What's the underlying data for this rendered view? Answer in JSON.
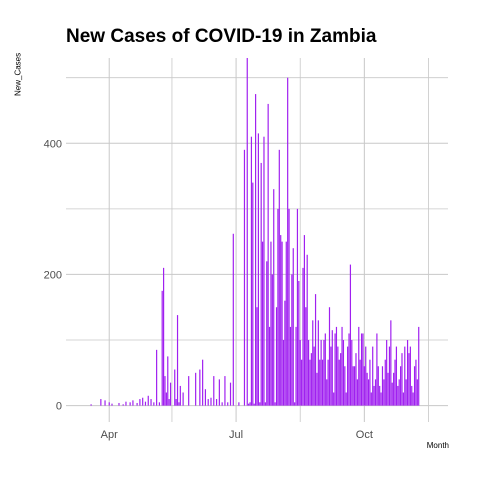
{
  "chart_data": {
    "type": "bar",
    "title": "New Cases of COVID-19 in Zambia",
    "xlabel": "Month",
    "ylabel": "New_Cases",
    "bar_color": "#a020f0",
    "grid": true,
    "grid_color": "#c8c8c8",
    "x_tick_labels": [
      "Apr",
      "Jul",
      "Oct"
    ],
    "y_ticks": [
      0,
      200,
      400
    ],
    "ylim": [
      -25,
      530
    ],
    "xlim": [
      "2020-03-01",
      "2020-11-30"
    ],
    "x": [
      "2020-03-19",
      "2020-03-26",
      "2020-03-29",
      "2020-04-01",
      "2020-04-03",
      "2020-04-08",
      "2020-04-11",
      "2020-04-13",
      "2020-04-16",
      "2020-04-18",
      "2020-04-21",
      "2020-04-23",
      "2020-04-25",
      "2020-04-27",
      "2020-04-29",
      "2020-05-01",
      "2020-05-03",
      "2020-05-05",
      "2020-05-07",
      "2020-05-09",
      "2020-05-10",
      "2020-05-11",
      "2020-05-12",
      "2020-05-13",
      "2020-05-14",
      "2020-05-15",
      "2020-05-18",
      "2020-05-19",
      "2020-05-20",
      "2020-05-21",
      "2020-05-22",
      "2020-05-24",
      "2020-05-28",
      "2020-06-02",
      "2020-06-05",
      "2020-06-07",
      "2020-06-09",
      "2020-06-11",
      "2020-06-13",
      "2020-06-15",
      "2020-06-17",
      "2020-06-19",
      "2020-06-21",
      "2020-06-23",
      "2020-06-25",
      "2020-06-27",
      "2020-06-29",
      "2020-07-03",
      "2020-07-07",
      "2020-07-09",
      "2020-07-10",
      "2020-07-11",
      "2020-07-12",
      "2020-07-13",
      "2020-07-14",
      "2020-07-15",
      "2020-07-16",
      "2020-07-17",
      "2020-07-18",
      "2020-07-19",
      "2020-07-20",
      "2020-07-21",
      "2020-07-22",
      "2020-07-23",
      "2020-07-24",
      "2020-07-25",
      "2020-07-26",
      "2020-07-27",
      "2020-07-28",
      "2020-07-29",
      "2020-07-30",
      "2020-07-31",
      "2020-08-01",
      "2020-08-02",
      "2020-08-03",
      "2020-08-04",
      "2020-08-05",
      "2020-08-06",
      "2020-08-07",
      "2020-08-08",
      "2020-08-09",
      "2020-08-10",
      "2020-08-11",
      "2020-08-12",
      "2020-08-13",
      "2020-08-14",
      "2020-08-15",
      "2020-08-16",
      "2020-08-17",
      "2020-08-18",
      "2020-08-19",
      "2020-08-20",
      "2020-08-21",
      "2020-08-22",
      "2020-08-23",
      "2020-08-24",
      "2020-08-25",
      "2020-08-26",
      "2020-08-27",
      "2020-08-28",
      "2020-08-29",
      "2020-08-30",
      "2020-08-31",
      "2020-09-01",
      "2020-09-02",
      "2020-09-03",
      "2020-09-04",
      "2020-09-05",
      "2020-09-06",
      "2020-09-07",
      "2020-09-08",
      "2020-09-09",
      "2020-09-10",
      "2020-09-11",
      "2020-09-12",
      "2020-09-13",
      "2020-09-14",
      "2020-09-15",
      "2020-09-16",
      "2020-09-17",
      "2020-09-18",
      "2020-09-19",
      "2020-09-20",
      "2020-09-21",
      "2020-09-22",
      "2020-09-23",
      "2020-09-24",
      "2020-09-25",
      "2020-09-26",
      "2020-09-27",
      "2020-09-28",
      "2020-09-29",
      "2020-09-30",
      "2020-10-01",
      "2020-10-02",
      "2020-10-03",
      "2020-10-04",
      "2020-10-05",
      "2020-10-06",
      "2020-10-07",
      "2020-10-08",
      "2020-10-09",
      "2020-10-10",
      "2020-10-11",
      "2020-10-12",
      "2020-10-13",
      "2020-10-14",
      "2020-10-15",
      "2020-10-16",
      "2020-10-17",
      "2020-10-18",
      "2020-10-19",
      "2020-10-20",
      "2020-10-21",
      "2020-10-22",
      "2020-10-23",
      "2020-10-24",
      "2020-10-25",
      "2020-10-26",
      "2020-10-27",
      "2020-10-28",
      "2020-10-29",
      "2020-10-30",
      "2020-10-31",
      "2020-11-01",
      "2020-11-02",
      "2020-11-03",
      "2020-11-04",
      "2020-11-05",
      "2020-11-06",
      "2020-11-07",
      "2020-11-08",
      "2020-11-09"
    ],
    "values": [
      2,
      10,
      8,
      5,
      3,
      4,
      2,
      6,
      5,
      8,
      4,
      10,
      12,
      6,
      15,
      10,
      5,
      85,
      5,
      175,
      210,
      45,
      20,
      75,
      10,
      35,
      55,
      10,
      138,
      5,
      30,
      20,
      45,
      50,
      55,
      70,
      25,
      10,
      12,
      45,
      10,
      40,
      5,
      45,
      5,
      35,
      262,
      5,
      390,
      530,
      3,
      5,
      410,
      340,
      3,
      475,
      150,
      415,
      5,
      370,
      250,
      410,
      5,
      220,
      460,
      120,
      250,
      200,
      330,
      5,
      150,
      300,
      390,
      260,
      250,
      100,
      160,
      250,
      500,
      300,
      120,
      200,
      240,
      5,
      120,
      300,
      190,
      100,
      70,
      210,
      260,
      150,
      230,
      100,
      70,
      80,
      130,
      90,
      170,
      50,
      130,
      70,
      100,
      70,
      100,
      110,
      40,
      70,
      150,
      90,
      115,
      20,
      110,
      120,
      90,
      70,
      80,
      120,
      100,
      60,
      20,
      90,
      110,
      215,
      100,
      60,
      60,
      80,
      40,
      120,
      70,
      110,
      110,
      60,
      90,
      50,
      40,
      70,
      20,
      90,
      30,
      40,
      110,
      60,
      30,
      20,
      60,
      40,
      70,
      100,
      50,
      90,
      130,
      35,
      50,
      70,
      90,
      30,
      40,
      60,
      80,
      20,
      90,
      40,
      100,
      80,
      90,
      30,
      20,
      60,
      70,
      40,
      120
    ]
  }
}
